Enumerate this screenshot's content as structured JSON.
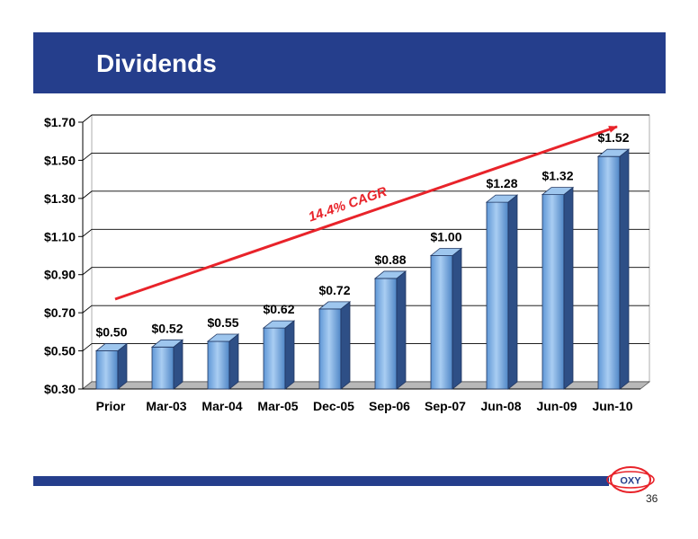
{
  "slide": {
    "title": "Dividends",
    "page_number": "36",
    "logo_text": "OXY"
  },
  "colors": {
    "title_bar": "#253e8c",
    "bar_front": "#7fb1e6",
    "bar_side": "#2e4f86",
    "bar_top": "#9ec6ee",
    "trend": "#e8232a"
  },
  "chart_data": {
    "type": "bar",
    "categories": [
      "Prior",
      "Mar-03",
      "Mar-04",
      "Mar-05",
      "Dec-05",
      "Sep-06",
      "Sep-07",
      "Jun-08",
      "Jun-09",
      "Jun-10"
    ],
    "values": [
      0.5,
      0.52,
      0.55,
      0.62,
      0.72,
      0.88,
      1.0,
      1.28,
      1.32,
      1.52
    ],
    "data_labels": [
      "$0.50",
      "$0.52",
      "$0.55",
      "$0.62",
      "$0.72",
      "$0.88",
      "$1.00",
      "$1.28",
      "$1.32",
      "$1.52"
    ],
    "y_ticks": [
      "$0.30",
      "$0.50",
      "$0.70",
      "$0.90",
      "$1.10",
      "$1.30",
      "$1.50",
      "$1.70"
    ],
    "y_tick_values": [
      0.3,
      0.5,
      0.7,
      0.9,
      1.1,
      1.3,
      1.5,
      1.7
    ],
    "ylim": [
      0.3,
      1.7
    ],
    "grid": true,
    "legend": false,
    "annotation": "14.4% CAGR"
  }
}
